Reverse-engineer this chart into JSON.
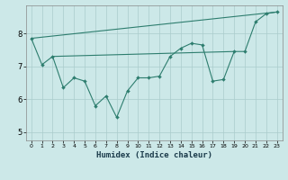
{
  "background_color": "#cce8e8",
  "line_color": "#2d7d6e",
  "grid_color": "#aacccc",
  "xlabel": "Humidex (Indice chaleur)",
  "xlim": [
    -0.5,
    23.5
  ],
  "ylim": [
    4.75,
    8.85
  ],
  "yticks": [
    5,
    6,
    7,
    8
  ],
  "xticks": [
    0,
    1,
    2,
    3,
    4,
    5,
    6,
    7,
    8,
    9,
    10,
    11,
    12,
    13,
    14,
    15,
    16,
    17,
    18,
    19,
    20,
    21,
    22,
    23
  ],
  "zigzag_x": [
    0,
    1,
    2,
    3,
    4,
    5,
    6,
    7,
    8,
    9,
    10,
    11,
    12,
    13,
    14,
    15,
    16,
    17,
    18,
    19,
    20,
    21,
    22,
    23
  ],
  "zigzag_y": [
    7.85,
    7.05,
    7.3,
    6.35,
    6.65,
    6.55,
    5.8,
    6.1,
    5.45,
    6.25,
    6.65,
    6.65,
    6.7,
    7.3,
    7.55,
    7.7,
    7.65,
    6.55,
    6.6,
    7.45,
    7.45,
    8.35,
    8.6,
    8.65
  ],
  "upper_line_x": [
    0,
    23
  ],
  "upper_line_y": [
    7.85,
    8.65
  ],
  "flat_line_x": [
    2,
    19
  ],
  "flat_line_y": [
    7.3,
    7.45
  ]
}
